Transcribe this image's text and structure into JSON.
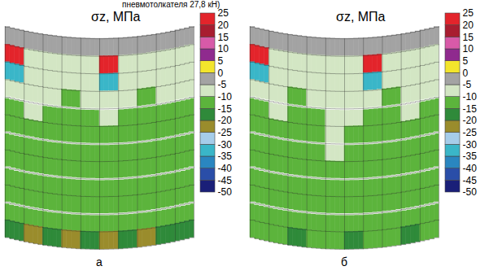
{
  "caption": "пневмотолкателя 27,8 кН)",
  "chart_data": [
    {
      "type": "heatmap",
      "title": "σz, МПа",
      "panel": "а",
      "tick_labels": false,
      "cells": [
        [
          -3,
          -3,
          -3,
          -3,
          -3,
          -3,
          -3,
          -3,
          -3,
          -3
        ],
        [
          22,
          -7,
          -7,
          -7,
          -7,
          22,
          -7,
          -7,
          -7,
          -7
        ],
        [
          -33,
          -7,
          -7,
          -7,
          -7,
          -33,
          -7,
          -7,
          -7,
          -7
        ],
        [
          -8,
          -7,
          -7,
          -12,
          -7,
          -7,
          -7,
          -12,
          -7,
          -8
        ],
        [
          -12,
          -8,
          -12,
          -12,
          -12,
          -8,
          -12,
          -12,
          -12,
          -12
        ],
        [
          -12,
          -12,
          -12,
          -12,
          -12,
          -12,
          -12,
          -12,
          -12,
          -12
        ],
        [
          -12,
          -12,
          -12,
          -12,
          -12,
          -12,
          -12,
          -12,
          -12,
          -12
        ],
        [
          -12,
          -12,
          -12,
          -12,
          -12,
          -12,
          -12,
          -12,
          -12,
          -12
        ],
        [
          -12,
          -12,
          -12,
          -12,
          -12,
          -12,
          -12,
          -12,
          -12,
          -12
        ],
        [
          -13,
          -12,
          -12,
          -12,
          -12,
          -12,
          -12,
          -12,
          -12,
          -13
        ],
        [
          -13,
          -13,
          -12,
          -12,
          -12,
          -12,
          -12,
          -12,
          -13,
          -13
        ],
        [
          -17,
          -22,
          -17,
          -22,
          -17,
          -22,
          -17,
          -22,
          -17,
          -17
        ]
      ],
      "color_bar": {
        "range": [
          -50,
          25
        ],
        "ticks": [
          -50,
          -45,
          -40,
          -35,
          -30,
          -25,
          -20,
          -15,
          -10,
          -5,
          0,
          5,
          10,
          15,
          20,
          25
        ],
        "colors": [
          "#1a1f78",
          "#2a4ea8",
          "#2a86c0",
          "#3ab6c8",
          "#a6cdea",
          "#9a8c2c",
          "#2f8a3a",
          "#5cb43c",
          "#d3e6c4",
          "#a3a3a3",
          "#f3e52c",
          "#8f2a8e",
          "#d85aa8",
          "#a81d30",
          "#e3242b"
        ]
      }
    },
    {
      "type": "heatmap",
      "title": "σz, МПа",
      "panel": "б",
      "tick_labels": false,
      "cells": [
        [
          -3,
          -3,
          -3,
          -3,
          -3,
          -3,
          -3,
          -3,
          -3,
          -3
        ],
        [
          22,
          -7,
          -7,
          -7,
          -7,
          -7,
          22,
          -7,
          -7,
          -7
        ],
        [
          -33,
          -7,
          -7,
          -7,
          -7,
          -7,
          -33,
          -7,
          -7,
          -7
        ],
        [
          -7,
          -7,
          -12,
          -7,
          -7,
          -7,
          -7,
          -12,
          -7,
          -7
        ],
        [
          -12,
          -7,
          -12,
          -12,
          -7,
          -7,
          -12,
          -12,
          -7,
          -12
        ],
        [
          -12,
          -12,
          -12,
          -12,
          -8,
          -12,
          -12,
          -12,
          -12,
          -12
        ],
        [
          -12,
          -12,
          -12,
          -12,
          -8,
          -12,
          -12,
          -12,
          -12,
          -12
        ],
        [
          -12,
          -12,
          -12,
          -12,
          -12,
          -12,
          -12,
          -12,
          -12,
          -12
        ],
        [
          -12,
          -12,
          -12,
          -12,
          -12,
          -12,
          -12,
          -12,
          -12,
          -12
        ],
        [
          -12,
          -12,
          -12,
          -12,
          -12,
          -12,
          -12,
          -12,
          -12,
          -12
        ],
        [
          -12,
          -12,
          -12,
          -12,
          -12,
          -12,
          -12,
          -12,
          -12,
          -12
        ],
        [
          -13,
          -13,
          -17,
          -13,
          -13,
          -17,
          -13,
          -13,
          -17,
          -13
        ]
      ],
      "color_bar": {
        "range": [
          -50,
          25
        ],
        "ticks": [
          -50,
          -45,
          -40,
          -35,
          -30,
          -25,
          -20,
          -15,
          -10,
          -5,
          0,
          5,
          10,
          15,
          20,
          25
        ],
        "colors": [
          "#1a1f78",
          "#2a4ea8",
          "#2a86c0",
          "#3ab6c8",
          "#a6cdea",
          "#9a8c2c",
          "#2f8a3a",
          "#5cb43c",
          "#d3e6c4",
          "#a3a3a3",
          "#f3e52c",
          "#8f2a8e",
          "#d85aa8",
          "#a81d30",
          "#e3242b"
        ]
      }
    }
  ]
}
